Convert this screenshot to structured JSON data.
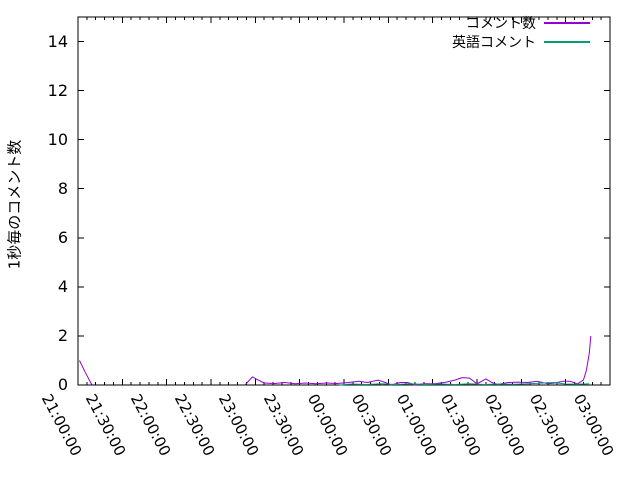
{
  "chart_data": {
    "type": "line",
    "title": "",
    "xlabel": "",
    "ylabel": "1秒毎のコメント数",
    "ylim": [
      0,
      15
    ],
    "ytick_values": [
      0,
      2,
      4,
      6,
      8,
      10,
      12,
      14
    ],
    "xtick_labels": [
      "21:00:00",
      "21:30:00",
      "22:00:00",
      "22:30:00",
      "23:00:00",
      "23:30:00",
      "00:00:00",
      "00:30:00",
      "01:00:00",
      "01:30:00",
      "02:00:00",
      "02:30:00",
      "03:00:00"
    ],
    "x_minor_per_major": 5,
    "grid": false,
    "legend_position": "top-right-inside",
    "background_color": "#ffffff",
    "axis_color": "#000000",
    "series": [
      {
        "name": "コメント数",
        "color": "#9400d3",
        "segments": [
          [
            [
              "21:01",
              1.0
            ],
            [
              "21:05",
              0.5
            ],
            [
              "21:09",
              0.05
            ],
            [
              "21:10",
              0.0
            ]
          ],
          [
            [
              "22:53",
              0.0
            ],
            [
              "22:58",
              0.33
            ],
            [
              "23:02",
              0.2
            ],
            [
              "23:06",
              0.08
            ],
            [
              "23:13",
              0.06
            ],
            [
              "23:20",
              0.1
            ],
            [
              "23:27",
              0.05
            ],
            [
              "23:34",
              0.08
            ],
            [
              "23:41",
              0.05
            ],
            [
              "23:48",
              0.08
            ],
            [
              "23:55",
              0.06
            ],
            [
              "00:03",
              0.1
            ],
            [
              "00:10",
              0.15
            ],
            [
              "00:16",
              0.1
            ],
            [
              "00:23",
              0.2
            ],
            [
              "00:28",
              0.1
            ],
            [
              "00:32",
              0.0
            ],
            [
              "00:38",
              0.1
            ],
            [
              "00:43",
              0.1
            ],
            [
              "00:48",
              0.0
            ],
            [
              "00:54",
              0.05
            ],
            [
              "01:01",
              0.05
            ],
            [
              "01:08",
              0.1
            ],
            [
              "01:15",
              0.2
            ],
            [
              "01:20",
              0.3
            ],
            [
              "01:25",
              0.28
            ],
            [
              "01:30",
              0.05
            ],
            [
              "01:36",
              0.25
            ],
            [
              "01:40",
              0.1
            ],
            [
              "01:44",
              0.02
            ],
            [
              "01:51",
              0.1
            ],
            [
              "01:58",
              0.12
            ],
            [
              "02:04",
              0.1
            ],
            [
              "02:11",
              0.15
            ],
            [
              "02:18",
              0.05
            ],
            [
              "02:23",
              0.08
            ],
            [
              "02:28",
              0.15
            ],
            [
              "02:33",
              0.15
            ],
            [
              "02:38",
              0.05
            ],
            [
              "02:42",
              0.2
            ],
            [
              "02:44",
              0.6
            ],
            [
              "02:46",
              1.3
            ],
            [
              "02:47",
              2.0
            ]
          ]
        ]
      },
      {
        "name": "英語コメント",
        "color": "#009e73",
        "segments": [
          [
            [
              "23:57",
              0.0
            ],
            [
              "00:05",
              0.04
            ],
            [
              "00:15",
              0.02
            ],
            [
              "00:25",
              0.05
            ],
            [
              "00:35",
              0.02
            ],
            [
              "00:45",
              0.05
            ],
            [
              "00:55",
              0.02
            ],
            [
              "01:05",
              0.04
            ],
            [
              "01:15",
              0.02
            ],
            [
              "01:25",
              0.05
            ],
            [
              "01:35",
              0.02
            ],
            [
              "01:45",
              0.04
            ],
            [
              "01:55",
              0.03
            ],
            [
              "02:05",
              0.05
            ],
            [
              "02:15",
              0.08
            ],
            [
              "02:22",
              0.1
            ],
            [
              "02:30",
              0.04
            ],
            [
              "02:38",
              0.03
            ],
            [
              "02:46",
              0.05
            ]
          ]
        ]
      }
    ]
  }
}
